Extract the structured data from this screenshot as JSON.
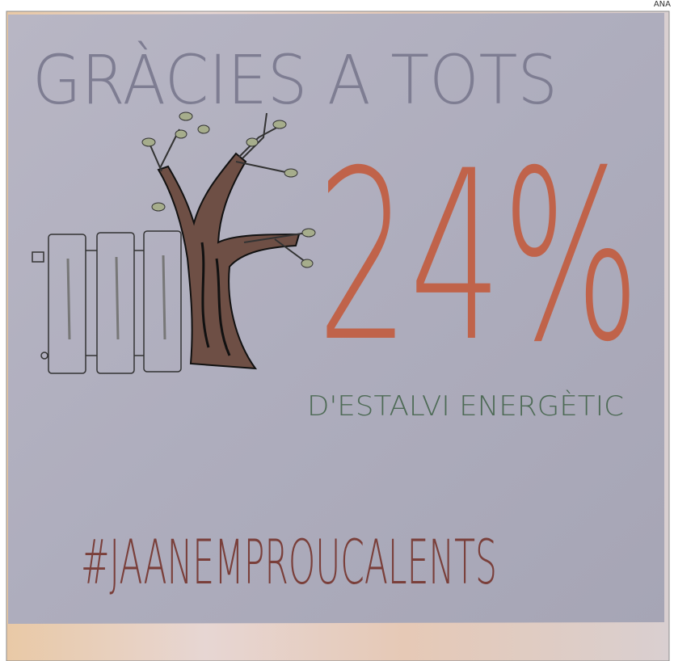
{
  "credit": "ANA",
  "sign": {
    "title": "GRÀCIES A TOTS",
    "figure": "24%",
    "caption": "D'ESTALVI ENERGÈTIC",
    "hashtag": "#JAANEMPROUCALENTS"
  }
}
